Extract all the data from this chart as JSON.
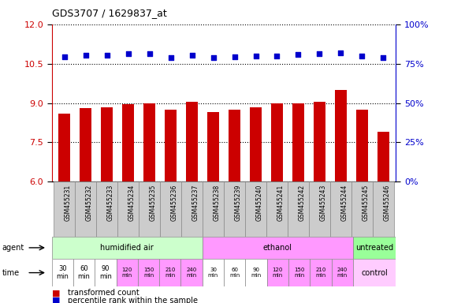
{
  "title": "GDS3707 / 1629837_at",
  "samples": [
    "GSM455231",
    "GSM455232",
    "GSM455233",
    "GSM455234",
    "GSM455235",
    "GSM455236",
    "GSM455237",
    "GSM455238",
    "GSM455239",
    "GSM455240",
    "GSM455241",
    "GSM455242",
    "GSM455243",
    "GSM455244",
    "GSM455245",
    "GSM455246"
  ],
  "bar_values": [
    8.6,
    8.8,
    8.85,
    8.95,
    9.0,
    8.75,
    9.05,
    8.65,
    8.75,
    8.85,
    9.0,
    9.0,
    9.05,
    9.5,
    8.75,
    7.9
  ],
  "dot_values": [
    10.75,
    10.82,
    10.82,
    10.88,
    10.88,
    10.72,
    10.82,
    10.72,
    10.75,
    10.78,
    10.78,
    10.85,
    10.88,
    10.9,
    10.78,
    10.72
  ],
  "bar_color": "#cc0000",
  "dot_color": "#0000cc",
  "ylim_left": [
    6,
    12
  ],
  "ylim_right": [
    0,
    100
  ],
  "yticks_left": [
    6,
    7.5,
    9,
    10.5,
    12
  ],
  "yticks_right": [
    0,
    25,
    50,
    75,
    100
  ],
  "agent_groups": [
    {
      "label": "humidified air",
      "start": 0,
      "end": 7,
      "color": "#ccffcc"
    },
    {
      "label": "ethanol",
      "start": 7,
      "end": 14,
      "color": "#ff99ff"
    },
    {
      "label": "untreated",
      "start": 14,
      "end": 16,
      "color": "#99ff99"
    }
  ],
  "time_labels": [
    "30\nmin",
    "60\nmin",
    "90\nmin",
    "120\nmin",
    "150\nmin",
    "210\nmin",
    "240\nmin",
    "30\nmin",
    "60\nmin",
    "90\nmin",
    "120\nmin",
    "150\nmin",
    "210\nmin",
    "240\nmin"
  ],
  "time_colors": [
    "#ffffff",
    "#ffffff",
    "#ffffff",
    "#ff99ff",
    "#ff99ff",
    "#ff99ff",
    "#ff99ff",
    "#ffffff",
    "#ffffff",
    "#ffffff",
    "#ff99ff",
    "#ff99ff",
    "#ff99ff",
    "#ff99ff"
  ],
  "time_label_control": "control",
  "agent_label": "agent",
  "time_label": "time",
  "legend_bar": "transformed count",
  "legend_dot": "percentile rank within the sample",
  "background_color": "#ffffff",
  "grid_color": "#888888",
  "sample_bg_color": "#cccccc"
}
